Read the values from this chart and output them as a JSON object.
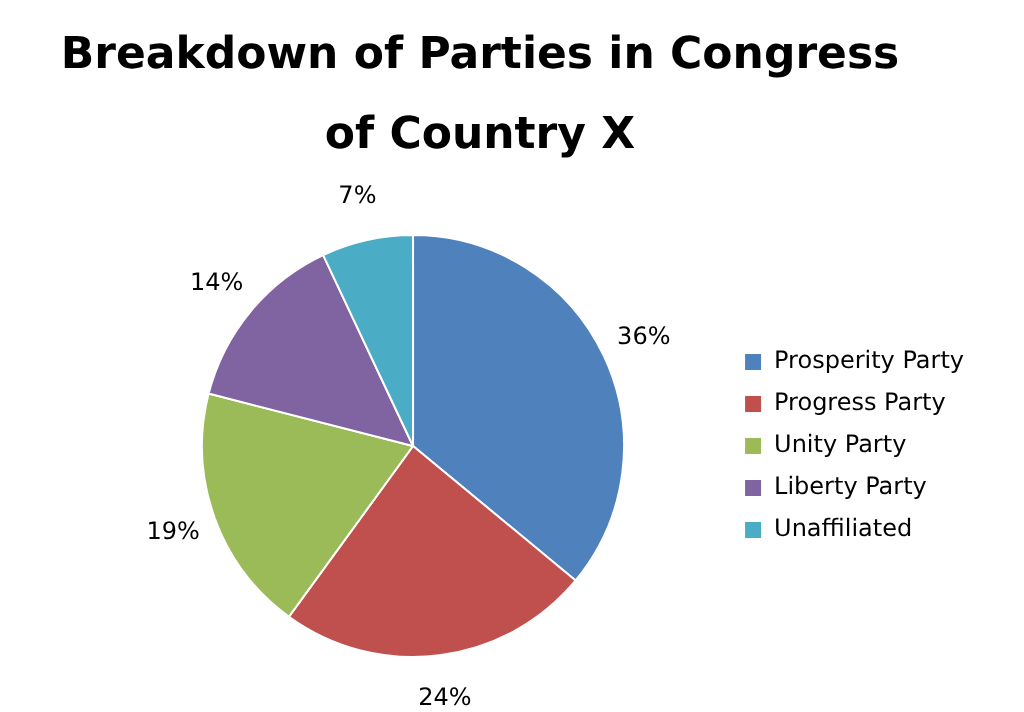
{
  "chart_data": {
    "type": "pie",
    "title": "Breakdown of Parties in Congress of Country X",
    "categories": [
      "Prosperity Party",
      "Progress Party",
      "Unity Party",
      "Liberty Party",
      "Unaffiliated"
    ],
    "values": [
      36,
      24,
      19,
      14,
      7
    ],
    "value_labels": [
      "36%",
      "24%",
      "19%",
      "14%",
      "7%"
    ],
    "colors": [
      "#4f81bd",
      "#c0504d",
      "#9bbb59",
      "#8064a2",
      "#4bacc6"
    ],
    "legend": "right"
  }
}
